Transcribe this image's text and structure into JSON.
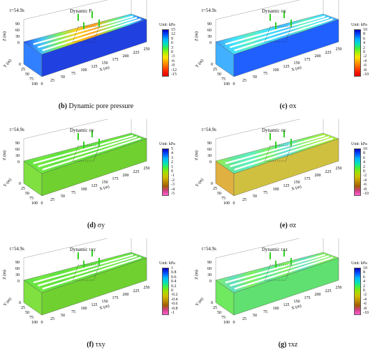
{
  "panels": [
    {
      "id": "b",
      "time": "t=54.9s",
      "title": "Dynamic P",
      "unit": "Unit: kPa",
      "ticks": [
        "15",
        "12",
        "9",
        "6",
        "3",
        "0",
        "-3",
        "-6",
        "-9",
        "-12",
        "-15"
      ],
      "caption_letter": "(b)",
      "caption_text": "Dynamic pore pressure",
      "colorbar": [
        "#0000c0",
        "#0050ff",
        "#00b0ff",
        "#00e0c0",
        "#40f040",
        "#b0f000",
        "#ffe000",
        "#ffa000",
        "#ff6000",
        "#ff2000",
        "#e00000"
      ]
    },
    {
      "id": "c",
      "time": "t=54.9s",
      "title": "Dynamic σx",
      "unit": "Unit: kPa",
      "ticks": [
        "10",
        "8",
        "6",
        "4",
        "2",
        "0",
        "-2",
        "-4",
        "-6",
        "-8",
        "-10"
      ],
      "caption_letter": "(c)",
      "caption_text": "σx",
      "colorbar": [
        "#0000c0",
        "#0050ff",
        "#00b0ff",
        "#00e0c0",
        "#40f040",
        "#b0f000",
        "#ffe000",
        "#ffa000",
        "#ff6000",
        "#ff2000",
        "#e00000"
      ]
    },
    {
      "id": "d",
      "time": "t=54.9s",
      "title": "Dynamic σy",
      "unit": "Unit: kPa",
      "ticks": [
        "5",
        "4",
        "3",
        "2",
        "1",
        "0",
        "-1",
        "-2",
        "-3",
        "-4",
        "-5"
      ],
      "caption_letter": "(d)",
      "caption_text": "σy",
      "colorbar": [
        "#0000c0",
        "#0050ff",
        "#00b0ff",
        "#00e0c0",
        "#40f040",
        "#a0e000",
        "#d0c000",
        "#c09000",
        "#a06000",
        "#d04080",
        "#ff60d0"
      ]
    },
    {
      "id": "e",
      "time": "t=54.9s",
      "title": "Dynamic σz",
      "unit": "Unit: kPa",
      "ticks": [
        "10",
        "8",
        "6",
        "4",
        "2",
        "0",
        "-2",
        "-4",
        "-6",
        "-8",
        "-10"
      ],
      "caption_letter": "(e)",
      "caption_text": "σz",
      "colorbar": [
        "#0000c0",
        "#0050ff",
        "#00b0ff",
        "#00e0c0",
        "#40f040",
        "#a0e000",
        "#d0c000",
        "#c09000",
        "#a06000",
        "#d04080",
        "#ff60d0"
      ]
    },
    {
      "id": "f",
      "time": "t=54.9s",
      "title": "Dynamic τxy",
      "unit": "Unit: kPa",
      "ticks": [
        "1",
        "0.8",
        "0.6",
        "0.4",
        "0.2",
        "0",
        "-0.2",
        "-0.4",
        "-0.6",
        "-0.8",
        "-1"
      ],
      "caption_letter": "(f)",
      "caption_text": "τxy",
      "colorbar": [
        "#0000c0",
        "#0050ff",
        "#00b0ff",
        "#00e0c0",
        "#40f040",
        "#a0e000",
        "#d0c000",
        "#c09000",
        "#a06000",
        "#d04080",
        "#ff60d0"
      ]
    },
    {
      "id": "g",
      "time": "t=54.9s",
      "title": "Dynamic τxz",
      "unit": "Unit: kPa",
      "ticks": [
        "10",
        "8",
        "6",
        "4",
        "2",
        "0",
        "-2",
        "-4",
        "-6",
        "-8",
        "-10"
      ],
      "caption_letter": "(g)",
      "caption_text": "τxz",
      "colorbar": [
        "#0000c0",
        "#0050ff",
        "#00b0ff",
        "#00e0c0",
        "#40f040",
        "#a0e000",
        "#d0c000",
        "#c09000",
        "#a06000",
        "#d04080",
        "#ff60d0"
      ]
    }
  ],
  "axes": {
    "z_label": "Z (m)",
    "y_label": "Y (m)",
    "x_label": "X (m)",
    "z_ticks": [
      "90",
      "60",
      "30",
      "0"
    ],
    "y_ticks": [
      "100",
      "75",
      "50",
      "25",
      "0"
    ],
    "x_ticks": [
      "0",
      "25",
      "50",
      "75",
      "100",
      "125",
      "150",
      "175",
      "200",
      "225",
      "250"
    ]
  },
  "fills": {
    "b": {
      "top": [
        "#2050ff",
        "#40c0ff",
        "#80f060",
        "#ffd020",
        "#ffa020",
        "#80f060",
        "#40e0ff",
        "#2050ff"
      ],
      "front": "#2040e0",
      "side": "#3080ff"
    },
    "c": {
      "top": [
        "#40a0ff",
        "#40e0ff",
        "#60f0c0",
        "#40e0ff",
        "#40c0ff",
        "#60f0c0",
        "#40e0ff",
        "#40a0ff"
      ],
      "front": "#2060ff",
      "side": "#40b0ff"
    },
    "d": {
      "top": [
        "#60e040",
        "#70e840",
        "#60e040",
        "#70e840",
        "#60e040",
        "#70e840",
        "#60e040",
        "#60e040"
      ],
      "front": "#70d030",
      "side": "#80e040"
    },
    "e": {
      "top": [
        "#a0f040",
        "#60e8a0",
        "#60f0c0",
        "#80f060",
        "#60e0e0",
        "#80f060",
        "#a0f040",
        "#b0f040"
      ],
      "front": "#d0c040",
      "side": "#e0b040"
    },
    "f": {
      "top": [
        "#60e040",
        "#70e840",
        "#60e040",
        "#70e840",
        "#60e040",
        "#70e840",
        "#60e040",
        "#60e040"
      ],
      "front": "#70d030",
      "side": "#80e040"
    },
    "g": {
      "top": [
        "#80f060",
        "#60e0c0",
        "#80f060",
        "#60e8a0",
        "#80f060",
        "#60e0c0",
        "#80f060",
        "#80f060"
      ],
      "front": "#60e070",
      "side": "#70e860"
    }
  }
}
